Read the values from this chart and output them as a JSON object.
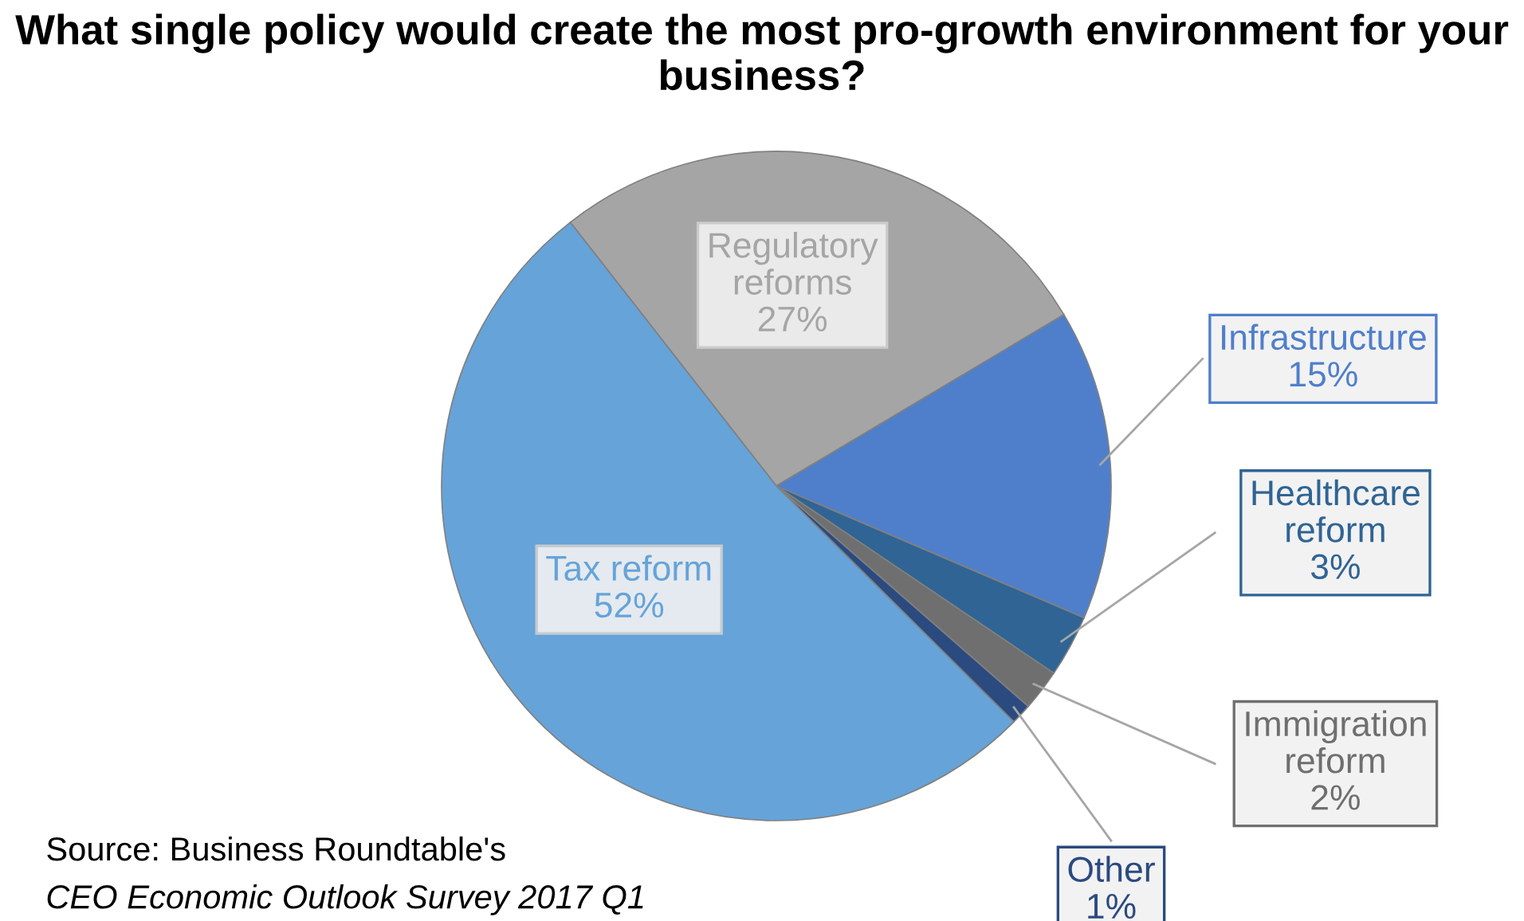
{
  "chart_data": {
    "type": "pie",
    "title": "What single policy would create the most pro-growth environment for your business?",
    "categories": [
      "Regulatory\nreforms",
      "Infrastructure",
      "Healthcare\nreform",
      "Immigration\nreform",
      "Other",
      "Tax reform"
    ],
    "values": [
      27,
      15,
      3,
      2,
      1,
      52
    ],
    "value_labels": [
      "27%",
      "15%",
      "3%",
      "2%",
      "1%",
      "52%"
    ],
    "colors": [
      "#a5a5a5",
      "#4f7fcb",
      "#2f6494",
      "#6f6f6f",
      "#2b4a80",
      "#66a3d9"
    ],
    "annotations": [
      "Source: Business Roundtable's",
      "CEO Economic Outlook Survey 2017 Q1"
    ],
    "legend": false
  }
}
